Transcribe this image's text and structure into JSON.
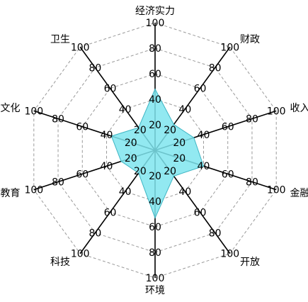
{
  "chart_data": {
    "type": "radar",
    "axes": [
      "经济实力",
      "财政",
      "收入",
      "金融",
      "开放",
      "环境",
      "科技",
      "教育",
      "文化",
      "卫生"
    ],
    "series": [
      {
        "values": [
          48,
          25,
          32,
          40,
          25,
          53,
          22,
          28,
          36,
          22
        ],
        "fill": "#7fe5ee",
        "stroke": "#3db5c3"
      }
    ],
    "tick_values": [
      20,
      40,
      60,
      80,
      100
    ],
    "tick_labels": [
      "20",
      "40",
      "60",
      "80",
      "100"
    ],
    "range": [
      0,
      100
    ],
    "grid": true,
    "grid_color": "#9a9a9a",
    "axis_color": "#000000"
  }
}
